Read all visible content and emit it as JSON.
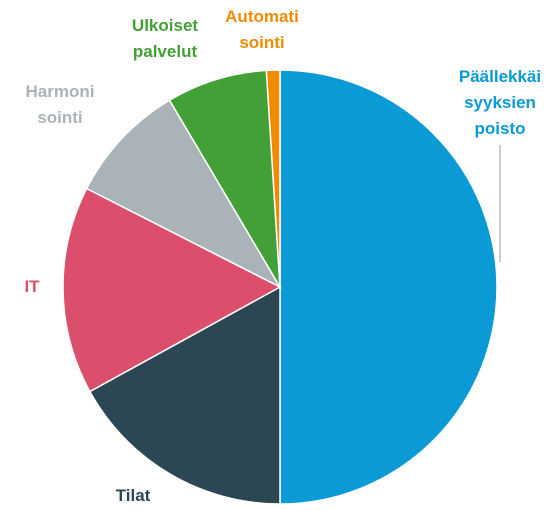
{
  "chart_data": {
    "type": "pie",
    "categories": [
      [
        "Päällekkäi",
        "syyksien",
        "poisto"
      ],
      [
        "Tilat"
      ],
      [
        "IT"
      ],
      [
        "Harmoni",
        "sointi"
      ],
      [
        "Ulkoiset",
        "palvelut"
      ],
      [
        "Automati",
        "sointi"
      ]
    ],
    "values": [
      50,
      17,
      15.5,
      9,
      7.5,
      1
    ],
    "colors": [
      "#0a9ad6",
      "#2c4653",
      "#db4f6c",
      "#aab3b8",
      "#43a036",
      "#f08b00"
    ],
    "label_colors": [
      "#0a9ad6",
      "#2c4653",
      "#db4f6c",
      "#aab3b8",
      "#43a036",
      "#f08b00"
    ]
  }
}
